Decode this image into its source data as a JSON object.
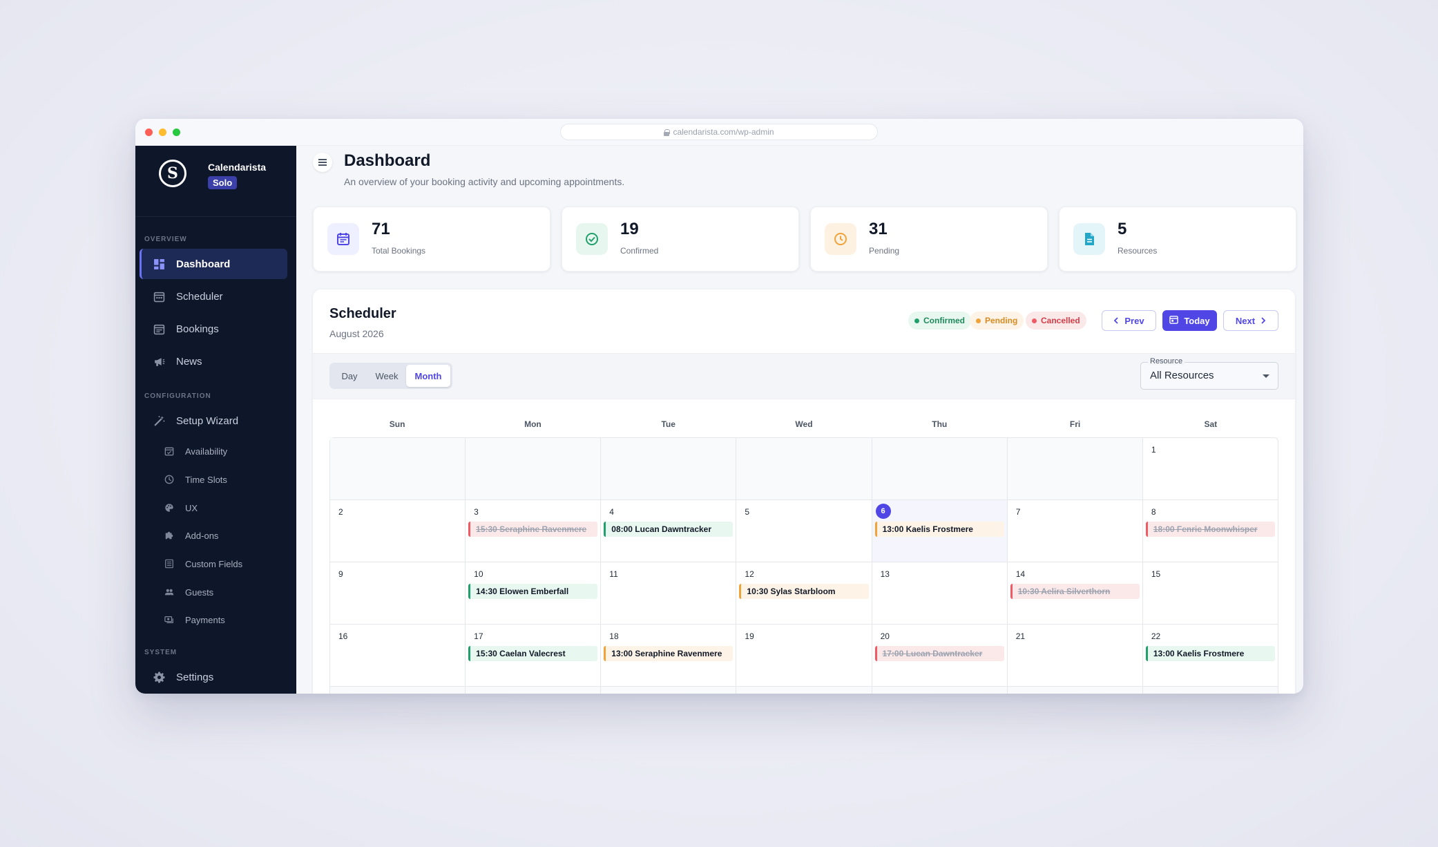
{
  "browser": {
    "url": "calendarista.com/wp-admin"
  },
  "brand": {
    "name": "Calendarista",
    "badge": "Solo",
    "logo_letter": "S"
  },
  "sidebar": {
    "sections": {
      "overview": "OVERVIEW",
      "configuration": "CONFIGURATION",
      "system": "SYSTEM"
    },
    "items": {
      "dashboard": "Dashboard",
      "scheduler": "Scheduler",
      "bookings": "Bookings",
      "news": "News",
      "setup_wizard": "Setup Wizard",
      "availability": "Availability",
      "time_slots": "Time Slots",
      "ux": "UX",
      "addons": "Add-ons",
      "custom_fields": "Custom Fields",
      "guests": "Guests",
      "payments": "Payments",
      "settings": "Settings"
    }
  },
  "header": {
    "title": "Dashboard",
    "subtitle": "An overview of your booking activity and upcoming appointments."
  },
  "stats": [
    {
      "value": "71",
      "label": "Total Bookings",
      "icon": "calendar-icon",
      "color": "#4f46e5"
    },
    {
      "value": "19",
      "label": "Confirmed",
      "icon": "check-circle-icon",
      "color": "#22a06b"
    },
    {
      "value": "31",
      "label": "Pending",
      "icon": "clock-icon",
      "color": "#f0a33a"
    },
    {
      "value": "5",
      "label": "Resources",
      "icon": "document-icon",
      "color": "#22a7c9"
    }
  ],
  "scheduler": {
    "title": "Scheduler",
    "period": "August 2026",
    "legend": {
      "confirmed": "Confirmed",
      "pending": "Pending",
      "cancelled": "Cancelled"
    },
    "buttons": {
      "prev": "Prev",
      "today": "Today",
      "next": "Next"
    },
    "views": {
      "day": "Day",
      "week": "Week",
      "month": "Month",
      "active": "Month"
    },
    "resource": {
      "label": "Resource",
      "value": "All Resources"
    },
    "weekdays": [
      "Sun",
      "Mon",
      "Tue",
      "Wed",
      "Thu",
      "Fri",
      "Sat"
    ],
    "today": "6",
    "weeks": [
      [
        {
          "d": ""
        },
        {
          "d": ""
        },
        {
          "d": ""
        },
        {
          "d": ""
        },
        {
          "d": ""
        },
        {
          "d": ""
        },
        {
          "d": "1"
        }
      ],
      [
        {
          "d": "2"
        },
        {
          "d": "3",
          "event": "15:30 Seraphine Ravenmere",
          "status": "cancelled"
        },
        {
          "d": "4",
          "event": "08:00 Lucan Dawntracker",
          "status": "confirmed"
        },
        {
          "d": "5"
        },
        {
          "d": "6",
          "event": "13:00 Kaelis Frostmere",
          "status": "pending"
        },
        {
          "d": "7"
        },
        {
          "d": "8",
          "event": "18:00 Fenric Moonwhisper",
          "status": "cancelled"
        }
      ],
      [
        {
          "d": "9"
        },
        {
          "d": "10",
          "event": "14:30 Elowen Emberfall",
          "status": "confirmed"
        },
        {
          "d": "11"
        },
        {
          "d": "12",
          "event": "10:30 Sylas Starbloom",
          "status": "pending"
        },
        {
          "d": "13"
        },
        {
          "d": "14",
          "event": "10:30 Aelira Silverthorn",
          "status": "cancelled"
        },
        {
          "d": "15"
        }
      ],
      [
        {
          "d": "16"
        },
        {
          "d": "17",
          "event": "15:30 Caelan Valecrest",
          "status": "confirmed"
        },
        {
          "d": "18",
          "event": "13:00 Seraphine Ravenmere",
          "status": "pending"
        },
        {
          "d": "19"
        },
        {
          "d": "20",
          "event": "17:00 Lucan Dawntracker",
          "status": "cancelled"
        },
        {
          "d": "21"
        },
        {
          "d": "22",
          "event": "13:00 Kaelis Frostmere",
          "status": "confirmed"
        }
      ],
      [
        {
          "d": ""
        },
        {
          "d": ""
        },
        {
          "d": ""
        },
        {
          "d": ""
        },
        {
          "d": ""
        },
        {
          "d": ""
        },
        {
          "d": ""
        }
      ]
    ]
  },
  "colors": {
    "accent": "#4f46e5",
    "sidebar_bg": "#0e1629",
    "confirmed": "#22a06b",
    "pending": "#f0a33a",
    "cancelled": "#ef5b64"
  }
}
